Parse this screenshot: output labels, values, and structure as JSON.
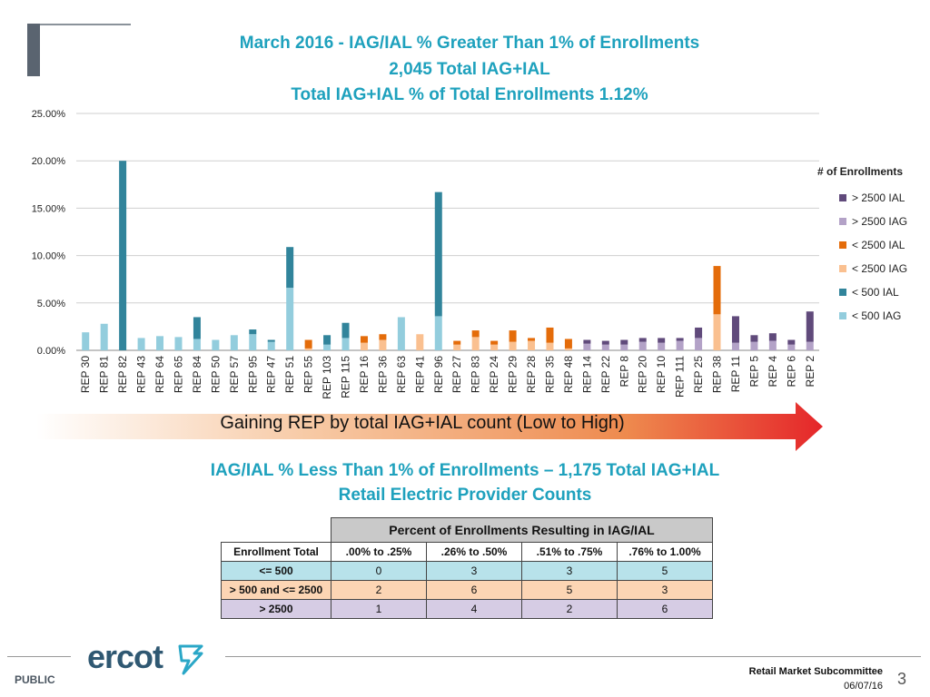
{
  "titles": {
    "line1": "March 2016 - IAG/IAL % Greater Than 1% of Enrollments",
    "line2": "2,045 Total IAG+IAL",
    "line3": "Total IAG+IAL % of Total Enrollments 1.12%"
  },
  "chart_data": {
    "type": "bar",
    "stacked": true,
    "ylim": [
      0,
      25
    ],
    "yticks": [
      "0.00%",
      "5.00%",
      "10.00%",
      "15.00%",
      "20.00%",
      "25.00%"
    ],
    "categories": [
      "REP 30",
      "REP 81",
      "REP 82",
      "REP 43",
      "REP 64",
      "REP 65",
      "REP 84",
      "REP 50",
      "REP 57",
      "REP 95",
      "REP 47",
      "REP 51",
      "REP 55",
      "REP 103",
      "REP 115",
      "REP 16",
      "REP 36",
      "REP 63",
      "REP 41",
      "REP 96",
      "REP 27",
      "REP 83",
      "REP 24",
      "REP 29",
      "REP 28",
      "REP 35",
      "REP 48",
      "REP 14",
      "REP 22",
      "REP 8",
      "REP 20",
      "REP 10",
      "REP 111",
      "REP 25",
      "REP 38",
      "REP 11",
      "REP 5",
      "REP 4",
      "REP 6",
      "REP 2"
    ],
    "series": [
      {
        "name": "< 500 IAG",
        "color": "#93cddd",
        "values": [
          1.9,
          2.8,
          0,
          1.3,
          1.5,
          1.4,
          1.2,
          1.1,
          1.6,
          1.7,
          0.9,
          6.6,
          0,
          0.6,
          1.3,
          0,
          0,
          3.5,
          0,
          3.6,
          0,
          0,
          0,
          0,
          0,
          0,
          0,
          0,
          0,
          0,
          0,
          0,
          0,
          0,
          0,
          0,
          0,
          0,
          0,
          0
        ]
      },
      {
        "name": "< 500 IAL",
        "color": "#31849b",
        "values": [
          0,
          0,
          20.0,
          0,
          0,
          0,
          2.3,
          0,
          0,
          0.5,
          0.2,
          4.3,
          0,
          1.0,
          1.6,
          0,
          0,
          0,
          0,
          13.1,
          0,
          0,
          0,
          0,
          0,
          0,
          0,
          0,
          0,
          0,
          0,
          0,
          0,
          0,
          0,
          0,
          0,
          0,
          0,
          0
        ]
      },
      {
        "name": "< 2500 IAG",
        "color": "#fac090",
        "values": [
          0,
          0,
          0,
          0,
          0,
          0,
          0,
          0,
          0,
          0,
          0,
          0,
          0.2,
          0,
          0,
          0.8,
          1.1,
          0,
          1.7,
          0,
          0.6,
          1.4,
          0.6,
          0.9,
          1.0,
          0.8,
          0.2,
          0,
          0,
          0,
          0,
          0,
          0,
          0,
          3.8,
          0,
          0,
          0,
          0,
          0
        ]
      },
      {
        "name": "< 2500 IAL",
        "color": "#e46c0a",
        "values": [
          0,
          0,
          0,
          0,
          0,
          0,
          0,
          0,
          0,
          0,
          0,
          0,
          0.9,
          0,
          0,
          0.7,
          0.6,
          0,
          0,
          0,
          0.4,
          0.7,
          0.4,
          1.2,
          0.3,
          1.6,
          1.0,
          0,
          0,
          0,
          0,
          0,
          0,
          0,
          5.1,
          0,
          0,
          0,
          0,
          0
        ]
      },
      {
        "name": "> 2500 IAG",
        "color": "#b3a2c7",
        "values": [
          0,
          0,
          0,
          0,
          0,
          0,
          0,
          0,
          0,
          0,
          0,
          0,
          0,
          0,
          0,
          0,
          0,
          0,
          0,
          0,
          0,
          0,
          0,
          0,
          0,
          0,
          0,
          0.7,
          0.6,
          0.6,
          0.9,
          0.8,
          1.0,
          1.3,
          0,
          0.8,
          0.9,
          1.0,
          0.6,
          0.9
        ]
      },
      {
        "name": "> 2500 IAL",
        "color": "#604a7b",
        "values": [
          0,
          0,
          0,
          0,
          0,
          0,
          0,
          0,
          0,
          0,
          0,
          0,
          0,
          0,
          0,
          0,
          0,
          0,
          0,
          0,
          0,
          0,
          0,
          0,
          0,
          0,
          0,
          0.4,
          0.4,
          0.5,
          0.4,
          0.5,
          0.3,
          1.1,
          0,
          2.8,
          0.7,
          0.8,
          0.5,
          3.2
        ]
      }
    ],
    "legend_title": "# of Enrollments"
  },
  "arrow": {
    "label": "Gaining REP by total IAG+IAL count (Low to High)"
  },
  "lower": {
    "title1": "IAG/IAL % Less Than 1% of Enrollments – 1,175 Total IAG+IAL",
    "title2": "Retail Electric Provider Counts"
  },
  "table": {
    "header": "Percent of Enrollments Resulting in IAG/IAL",
    "columns": [
      "Enrollment Total",
      ".00% to .25%",
      ".26% to .50%",
      ".51% to .75%",
      ".76% to 1.00%"
    ],
    "rows": [
      {
        "label": "<= 500",
        "values": [
          "0",
          "3",
          "3",
          "5"
        ]
      },
      {
        "label": "> 500 and <= 2500",
        "values": [
          "2",
          "6",
          "5",
          "3"
        ]
      },
      {
        "label": "> 2500",
        "values": [
          "1",
          "4",
          "2",
          "6"
        ]
      }
    ]
  },
  "footer": {
    "logo": "ercot",
    "public": "PUBLIC",
    "committee": "Retail Market Subcommittee",
    "date": "06/07/16",
    "page": "3"
  }
}
